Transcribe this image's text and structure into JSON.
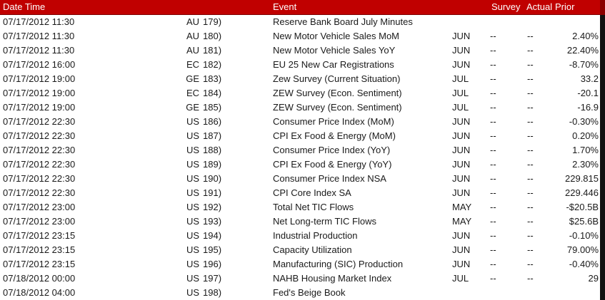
{
  "columns": {
    "date_time": "Date Time",
    "event": "Event",
    "survey": "Survey",
    "actual": "Actual",
    "prior": "Prior"
  },
  "colors": {
    "header_bg": "#C00000",
    "header_text": "#FFFFFF",
    "header_border": "#7F0000",
    "row_bg": "#FFFFFF",
    "body_text": "#1A1A1A",
    "right_strip": "#111111",
    "right_strip_header": "#8B0000"
  },
  "rows": [
    {
      "datetime": "07/17/2012 11:30",
      "country": "AU",
      "index": "179)",
      "event": "Reserve Bank Board July Minutes",
      "month": "",
      "survey": "",
      "actual": "",
      "prior": ""
    },
    {
      "datetime": "07/17/2012 11:30",
      "country": "AU",
      "index": "180)",
      "event": "New Motor Vehicle Sales MoM",
      "month": "JUN",
      "survey": "--",
      "actual": "--",
      "prior": "2.40%"
    },
    {
      "datetime": "07/17/2012 11:30",
      "country": "AU",
      "index": "181)",
      "event": "New Motor Vehicle Sales YoY",
      "month": "JUN",
      "survey": "--",
      "actual": "--",
      "prior": "22.40%"
    },
    {
      "datetime": "07/17/2012 16:00",
      "country": "EC",
      "index": "182)",
      "event": "EU 25 New Car Registrations",
      "month": "JUN",
      "survey": "--",
      "actual": "--",
      "prior": "-8.70%"
    },
    {
      "datetime": "07/17/2012 19:00",
      "country": "GE",
      "index": "183)",
      "event": "Zew Survey (Current Situation)",
      "month": "JUL",
      "survey": "--",
      "actual": "--",
      "prior": "33.2"
    },
    {
      "datetime": "07/17/2012 19:00",
      "country": "EC",
      "index": "184)",
      "event": "ZEW Survey (Econ. Sentiment)",
      "month": "JUL",
      "survey": "--",
      "actual": "--",
      "prior": "-20.1"
    },
    {
      "datetime": "07/17/2012 19:00",
      "country": "GE",
      "index": "185)",
      "event": "ZEW Survey (Econ. Sentiment)",
      "month": "JUL",
      "survey": "--",
      "actual": "--",
      "prior": "-16.9"
    },
    {
      "datetime": "07/17/2012 22:30",
      "country": "US",
      "index": "186)",
      "event": "Consumer Price Index (MoM)",
      "month": "JUN",
      "survey": "--",
      "actual": "--",
      "prior": "-0.30%"
    },
    {
      "datetime": "07/17/2012 22:30",
      "country": "US",
      "index": "187)",
      "event": "CPI Ex Food & Energy (MoM)",
      "month": "JUN",
      "survey": "--",
      "actual": "--",
      "prior": "0.20%"
    },
    {
      "datetime": "07/17/2012 22:30",
      "country": "US",
      "index": "188)",
      "event": "Consumer Price Index (YoY)",
      "month": "JUN",
      "survey": "--",
      "actual": "--",
      "prior": "1.70%"
    },
    {
      "datetime": "07/17/2012 22:30",
      "country": "US",
      "index": "189)",
      "event": "CPI Ex Food & Energy (YoY)",
      "month": "JUN",
      "survey": "--",
      "actual": "--",
      "prior": "2.30%"
    },
    {
      "datetime": "07/17/2012 22:30",
      "country": "US",
      "index": "190)",
      "event": "Consumer Price Index NSA",
      "month": "JUN",
      "survey": "--",
      "actual": "--",
      "prior": "229.815"
    },
    {
      "datetime": "07/17/2012 22:30",
      "country": "US",
      "index": "191)",
      "event": "CPI Core Index SA",
      "month": "JUN",
      "survey": "--",
      "actual": "--",
      "prior": "229.446"
    },
    {
      "datetime": "07/17/2012 23:00",
      "country": "US",
      "index": "192)",
      "event": "Total Net TIC Flows",
      "month": "MAY",
      "survey": "--",
      "actual": "--",
      "prior": "-$20.5B"
    },
    {
      "datetime": "07/17/2012 23:00",
      "country": "US",
      "index": "193)",
      "event": "Net Long-term TIC Flows",
      "month": "MAY",
      "survey": "--",
      "actual": "--",
      "prior": "$25.6B"
    },
    {
      "datetime": "07/17/2012 23:15",
      "country": "US",
      "index": "194)",
      "event": "Industrial Production",
      "month": "JUN",
      "survey": "--",
      "actual": "--",
      "prior": "-0.10%"
    },
    {
      "datetime": "07/17/2012 23:15",
      "country": "US",
      "index": "195)",
      "event": "Capacity Utilization",
      "month": "JUN",
      "survey": "--",
      "actual": "--",
      "prior": "79.00%"
    },
    {
      "datetime": "07/17/2012 23:15",
      "country": "US",
      "index": "196)",
      "event": "Manufacturing (SIC) Production",
      "month": "JUN",
      "survey": "--",
      "actual": "--",
      "prior": "-0.40%"
    },
    {
      "datetime": "07/18/2012 00:00",
      "country": "US",
      "index": "197)",
      "event": "NAHB Housing Market Index",
      "month": "JUL",
      "survey": "--",
      "actual": "--",
      "prior": "29"
    },
    {
      "datetime": "07/18/2012 04:00",
      "country": "US",
      "index": "198)",
      "event": "Fed's Beige Book",
      "month": "",
      "survey": "",
      "actual": "",
      "prior": ""
    }
  ]
}
